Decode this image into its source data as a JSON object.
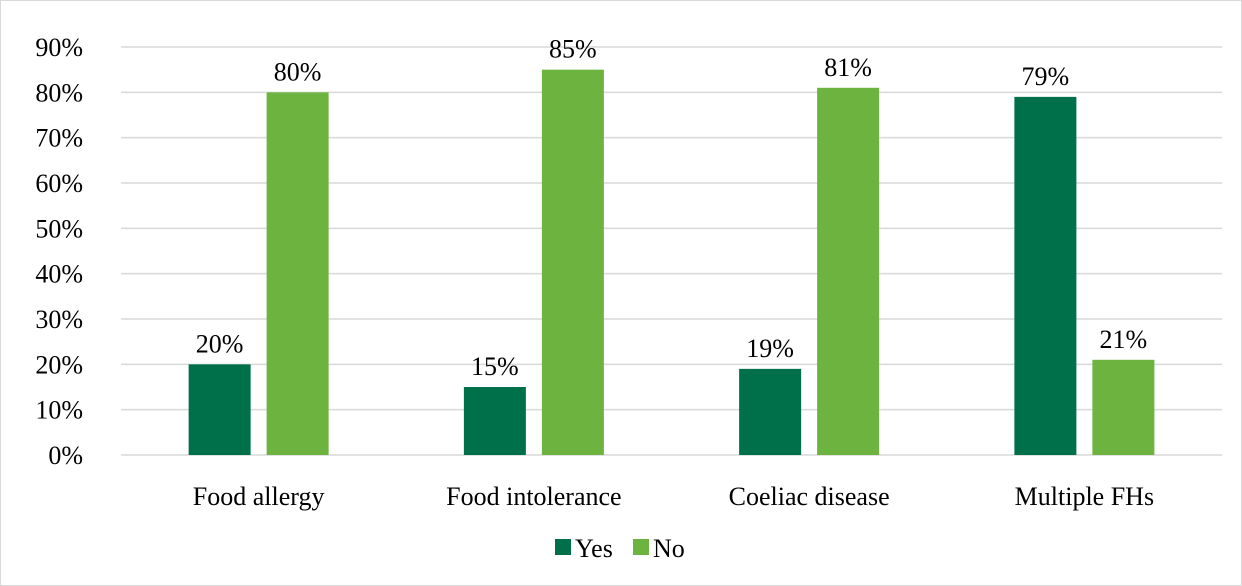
{
  "chart_data": {
    "type": "bar",
    "categories": [
      "Food allergy",
      "Food intolerance",
      "Coeliac disease",
      "Multiple FHs"
    ],
    "series": [
      {
        "name": "Yes",
        "values": [
          20,
          15,
          19,
          79
        ],
        "labels": [
          "20%",
          "15%",
          "19%",
          "79%"
        ],
        "color": "#00704a"
      },
      {
        "name": "No",
        "values": [
          80,
          85,
          81,
          21
        ],
        "labels": [
          "80%",
          "85%",
          "81%",
          "21%"
        ],
        "color": "#6db33f"
      }
    ],
    "ylim": [
      0,
      90
    ],
    "yticks": [
      0,
      10,
      20,
      30,
      40,
      50,
      60,
      70,
      80,
      90
    ],
    "ytick_labels": [
      "0%",
      "10%",
      "20%",
      "30%",
      "40%",
      "50%",
      "60%",
      "70%",
      "80%",
      "90%"
    ],
    "grid": true,
    "legend_position": "bottom"
  }
}
